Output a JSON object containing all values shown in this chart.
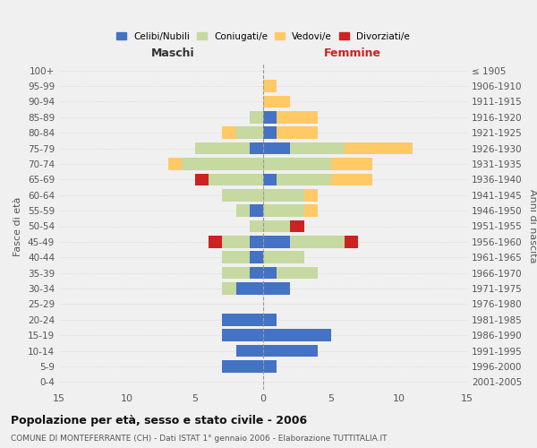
{
  "age_groups": [
    "0-4",
    "5-9",
    "10-14",
    "15-19",
    "20-24",
    "25-29",
    "30-34",
    "35-39",
    "40-44",
    "45-49",
    "50-54",
    "55-59",
    "60-64",
    "65-69",
    "70-74",
    "75-79",
    "80-84",
    "85-89",
    "90-94",
    "95-99",
    "100+"
  ],
  "birth_years": [
    "2001-2005",
    "1996-2000",
    "1991-1995",
    "1986-1990",
    "1981-1985",
    "1976-1980",
    "1971-1975",
    "1966-1970",
    "1961-1965",
    "1956-1960",
    "1951-1955",
    "1946-1950",
    "1941-1945",
    "1936-1940",
    "1931-1935",
    "1926-1930",
    "1921-1925",
    "1916-1920",
    "1911-1915",
    "1906-1910",
    "≤ 1905"
  ],
  "colors": {
    "celibi": "#4472c4",
    "coniugati": "#c5d9a0",
    "vedovi": "#ffc966",
    "divorziati": "#cc2222"
  },
  "maschi": {
    "celibi": [
      0,
      3,
      2,
      3,
      3,
      0,
      2,
      1,
      1,
      1,
      0,
      1,
      0,
      0,
      0,
      1,
      0,
      0,
      0,
      0,
      0
    ],
    "coniugati": [
      0,
      0,
      0,
      0,
      0,
      0,
      1,
      2,
      2,
      2,
      1,
      1,
      3,
      4,
      6,
      4,
      2,
      1,
      0,
      0,
      0
    ],
    "vedovi": [
      0,
      0,
      0,
      0,
      0,
      0,
      0,
      0,
      0,
      0,
      0,
      0,
      0,
      0,
      1,
      0,
      1,
      0,
      0,
      0,
      0
    ],
    "divorziati": [
      0,
      0,
      0,
      0,
      0,
      0,
      0,
      0,
      0,
      1,
      0,
      0,
      0,
      1,
      0,
      0,
      0,
      0,
      0,
      0,
      0
    ]
  },
  "femmine": {
    "celibi": [
      0,
      1,
      4,
      5,
      1,
      0,
      2,
      1,
      0,
      2,
      0,
      0,
      0,
      1,
      0,
      2,
      1,
      1,
      0,
      0,
      0
    ],
    "coniugati": [
      0,
      0,
      0,
      0,
      0,
      0,
      0,
      3,
      3,
      4,
      2,
      3,
      3,
      4,
      5,
      4,
      0,
      0,
      0,
      0,
      0
    ],
    "vedovi": [
      0,
      0,
      0,
      0,
      0,
      0,
      0,
      0,
      0,
      0,
      0,
      1,
      1,
      3,
      3,
      5,
      3,
      3,
      2,
      1,
      0
    ],
    "divorziati": [
      0,
      0,
      0,
      0,
      0,
      0,
      0,
      0,
      0,
      1,
      1,
      0,
      0,
      0,
      0,
      0,
      0,
      0,
      0,
      0,
      0
    ]
  },
  "xlim": 15,
  "title": "Popolazione per età, sesso e stato civile - 2006",
  "subtitle": "COMUNE DI MONTEFERRANTE (CH) - Dati ISTAT 1° gennaio 2006 - Elaborazione TUTTITALIA.IT",
  "ylabel_left": "Fasce di età",
  "ylabel_right": "Anni di nascita",
  "xlabel_left": "Maschi",
  "xlabel_right": "Femmine",
  "legend_labels": [
    "Celibi/Nubili",
    "Coniugati/e",
    "Vedovi/e",
    "Divorziati/e"
  ],
  "background_color": "#f0f0f0"
}
